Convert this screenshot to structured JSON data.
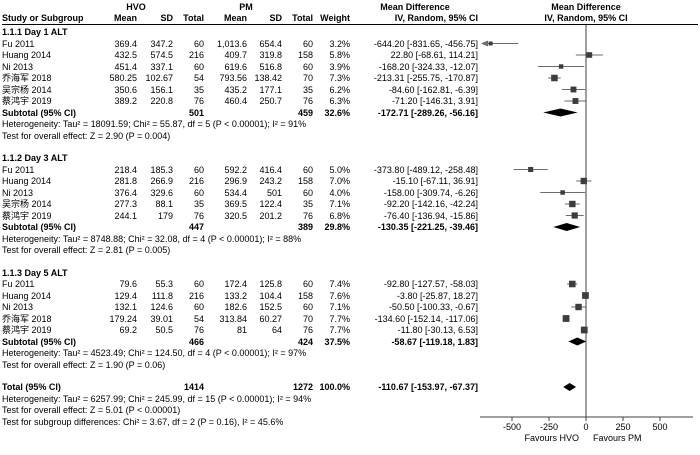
{
  "header": {
    "group1": "HVO",
    "group2": "PM",
    "col_study": "Study or Subgroup",
    "col_mean": "Mean",
    "col_sd": "SD",
    "col_total": "Total",
    "col_weight": "Weight",
    "md_label": "Mean Difference",
    "md_sub": "IV, Random, 95% CI"
  },
  "sections": [
    {
      "heading": "1.1.1 Day 1 ALT",
      "studies": [
        {
          "study": "Fu 2011",
          "cells": [
            "369.4",
            "347.2",
            "60",
            "1,013.6",
            "654.4",
            "60",
            "3.2%",
            "-644.20 [-831.65, -456.75]"
          ]
        },
        {
          "study": "Huang 2014",
          "cells": [
            "432.5",
            "574.5",
            "216",
            "409.7",
            "319.8",
            "158",
            "5.8%",
            "22.80 [-68.61, 114.21]"
          ]
        },
        {
          "study": "Ni 2013",
          "cells": [
            "451.4",
            "337.1",
            "60",
            "619.6",
            "516.8",
            "60",
            "3.9%",
            "-168.20 [-324.33, -12.07]"
          ]
        },
        {
          "study": "乔海军 2018",
          "cells": [
            "580.25",
            "102.67",
            "54",
            "793.56",
            "138.42",
            "70",
            "7.3%",
            "-213.31 [-255.75, -170.87]"
          ]
        },
        {
          "study": "吴宗杨 2014",
          "cells": [
            "350.6",
            "156.1",
            "35",
            "435.2",
            "177.1",
            "35",
            "6.2%",
            "-84.60 [-162.81, -6.39]"
          ]
        },
        {
          "study": "蔡鸿宇 2019",
          "cells": [
            "389.2",
            "220.8",
            "76",
            "460.4",
            "250.7",
            "76",
            "6.3%",
            "-71.20 [-146.31, 3.91]"
          ]
        }
      ],
      "subtotal": {
        "label": "Subtotal (95% CI)",
        "n1": "501",
        "n2": "459",
        "weight": "32.6%",
        "ci": "-172.71 [-289.26, -56.16]"
      },
      "heterogeneity": "Heterogeneity: Tau² = 18091.59; Chi² = 55.87, df = 5 (P < 0.00001); I² = 91%",
      "overall": "Test for overall effect: Z = 2.90 (P = 0.004)"
    },
    {
      "heading": "1.1.2 Day 3 ALT",
      "studies": [
        {
          "study": "Fu 2011",
          "cells": [
            "218.4",
            "185.3",
            "60",
            "592.2",
            "416.4",
            "60",
            "5.0%",
            "-373.80 [-489.12, -258.48]"
          ]
        },
        {
          "study": "Huang 2014",
          "cells": [
            "281.8",
            "266.9",
            "216",
            "296.9",
            "243.2",
            "158",
            "7.0%",
            "-15.10 [-67.11, 36.91]"
          ]
        },
        {
          "study": "Ni 2013",
          "cells": [
            "376.4",
            "329.6",
            "60",
            "534.4",
            "501",
            "60",
            "4.0%",
            "-158.00 [-309.74, -6.26]"
          ]
        },
        {
          "study": "吴宗杨 2014",
          "cells": [
            "277.3",
            "88.1",
            "35",
            "369.5",
            "122.4",
            "35",
            "7.1%",
            "-92.20 [-142.16, -42.24]"
          ]
        },
        {
          "study": "蔡鸿宇 2019",
          "cells": [
            "244.1",
            "179",
            "76",
            "320.5",
            "201.2",
            "76",
            "6.8%",
            "-76.40 [-136.94, -15.86]"
          ]
        }
      ],
      "subtotal": {
        "label": "Subtotal (95% CI)",
        "n1": "447",
        "n2": "389",
        "weight": "29.8%",
        "ci": "-130.35 [-221.25, -39.46]"
      },
      "heterogeneity": "Heterogeneity: Tau² = 8748.88; Chi² = 32.08, df = 4 (P < 0.00001); I² = 88%",
      "overall": "Test for overall effect: Z = 2.81 (P = 0.005)"
    },
    {
      "heading": "1.1.3 Day 5 ALT",
      "studies": [
        {
          "study": "Fu 2011",
          "cells": [
            "79.6",
            "55.3",
            "60",
            "172.4",
            "125.8",
            "60",
            "7.4%",
            "-92.80 [-127.57, -58.03]"
          ]
        },
        {
          "study": "Huang 2014",
          "cells": [
            "129.4",
            "111.8",
            "216",
            "133.2",
            "104.4",
            "158",
            "7.6%",
            "-3.80 [-25.87, 18.27]"
          ]
        },
        {
          "study": "Ni 2013",
          "cells": [
            "132.1",
            "124.6",
            "60",
            "182.6",
            "152.5",
            "60",
            "7.1%",
            "-50.50 [-100.33, -0.67]"
          ]
        },
        {
          "study": "乔海军 2018",
          "cells": [
            "179.24",
            "39.01",
            "54",
            "313.84",
            "60.27",
            "70",
            "7.7%",
            "-134.60 [-152.14, -117.06]"
          ]
        },
        {
          "study": "蔡鸿宇 2019",
          "cells": [
            "69.2",
            "50.5",
            "76",
            "81",
            "64",
            "76",
            "7.7%",
            "-11.80 [-30.13, 6.53]"
          ]
        }
      ],
      "subtotal": {
        "label": "Subtotal (95% CI)",
        "n1": "466",
        "n2": "424",
        "weight": "37.5%",
        "ci": "-58.67 [-119.18, 1.83]"
      },
      "heterogeneity": "Heterogeneity: Tau² = 4523.49; Chi² = 124.50, df = 4 (P < 0.00001); I² = 97%",
      "overall": "Test for overall effect: Z = 1.90 (P = 0.06)"
    }
  ],
  "total": {
    "label": "Total (95% CI)",
    "n1": "1414",
    "n2": "1272",
    "weight": "100.0%",
    "ci": "-110.67 [-153.97, -67.37]",
    "heterogeneity": "Heterogeneity: Tau² = 6257.99; Chi² = 245.99, df = 15 (P < 0.00001); I² = 94%",
    "overall": "Test for overall effect: Z = 5.01 (P < 0.00001)",
    "subgroup": "Test for subgroup differences: Chi² = 3.67, df = 2 (P = 0.16), I² = 45.6%"
  },
  "axis": {
    "ticks": [
      "-500",
      "-250",
      "0",
      "250",
      "500"
    ],
    "tick_values": [
      -500,
      -250,
      0,
      250,
      500
    ],
    "favours_left": "Favours HVO",
    "favours_right": "Favours PM"
  },
  "colors": {
    "text": "#000000",
    "ci_line": "#6b6b6b",
    "marker": "#3d3d3d",
    "diamond": "#000000",
    "axis": "#404040"
  },
  "chart_data": {
    "type": "scatter",
    "variant": "forest-plot",
    "title": "Mean Difference  IV, Random, 95% CI",
    "xlabel": "Mean Difference",
    "xlim": [
      -700,
      700
    ],
    "x_ticks": [
      -500,
      -250,
      0,
      250,
      500
    ],
    "favours_left": "Favours HVO",
    "favours_right": "Favours PM",
    "series": [
      {
        "name": "1.1.1 Day 1 ALT",
        "points": [
          {
            "study": "Fu 2011",
            "md": -644.2,
            "lo": -831.65,
            "hi": -456.75,
            "weight_pct": 3.2
          },
          {
            "study": "Huang 2014",
            "md": 22.8,
            "lo": -68.61,
            "hi": 114.21,
            "weight_pct": 5.8
          },
          {
            "study": "Ni 2013",
            "md": -168.2,
            "lo": -324.33,
            "hi": -12.07,
            "weight_pct": 3.9
          },
          {
            "study": "乔海军 2018",
            "md": -213.31,
            "lo": -255.75,
            "hi": -170.87,
            "weight_pct": 7.3
          },
          {
            "study": "吴宗杨 2014",
            "md": -84.6,
            "lo": -162.81,
            "hi": -6.39,
            "weight_pct": 6.2
          },
          {
            "study": "蔡鸿宇 2019",
            "md": -71.2,
            "lo": -146.31,
            "hi": 3.91,
            "weight_pct": 6.3
          }
        ],
        "subtotal": {
          "md": -172.71,
          "lo": -289.26,
          "hi": -56.16,
          "weight_pct": 32.6
        }
      },
      {
        "name": "1.1.2 Day 3 ALT",
        "points": [
          {
            "study": "Fu 2011",
            "md": -373.8,
            "lo": -489.12,
            "hi": -258.48,
            "weight_pct": 5.0
          },
          {
            "study": "Huang 2014",
            "md": -15.1,
            "lo": -67.11,
            "hi": 36.91,
            "weight_pct": 7.0
          },
          {
            "study": "Ni 2013",
            "md": -158.0,
            "lo": -309.74,
            "hi": -6.26,
            "weight_pct": 4.0
          },
          {
            "study": "吴宗杨 2014",
            "md": -92.2,
            "lo": -142.16,
            "hi": -42.24,
            "weight_pct": 7.1
          },
          {
            "study": "蔡鸿宇 2019",
            "md": -76.4,
            "lo": -136.94,
            "hi": -15.86,
            "weight_pct": 6.8
          }
        ],
        "subtotal": {
          "md": -130.35,
          "lo": -221.25,
          "hi": -39.46,
          "weight_pct": 29.8
        }
      },
      {
        "name": "1.1.3 Day 5 ALT",
        "points": [
          {
            "study": "Fu 2011",
            "md": -92.8,
            "lo": -127.57,
            "hi": -58.03,
            "weight_pct": 7.4
          },
          {
            "study": "Huang 2014",
            "md": -3.8,
            "lo": -25.87,
            "hi": 18.27,
            "weight_pct": 7.6
          },
          {
            "study": "Ni 2013",
            "md": -50.5,
            "lo": -100.33,
            "hi": -0.67,
            "weight_pct": 7.1
          },
          {
            "study": "乔海军 2018",
            "md": -134.6,
            "lo": -152.14,
            "hi": -117.06,
            "weight_pct": 7.7
          },
          {
            "study": "蔡鸿宇 2019",
            "md": -11.8,
            "lo": -30.13,
            "hi": 6.53,
            "weight_pct": 7.7
          }
        ],
        "subtotal": {
          "md": -58.67,
          "lo": -119.18,
          "hi": 1.83,
          "weight_pct": 37.5
        }
      }
    ],
    "total": {
      "md": -110.67,
      "lo": -153.97,
      "hi": -67.37,
      "weight_pct": 100.0
    }
  }
}
